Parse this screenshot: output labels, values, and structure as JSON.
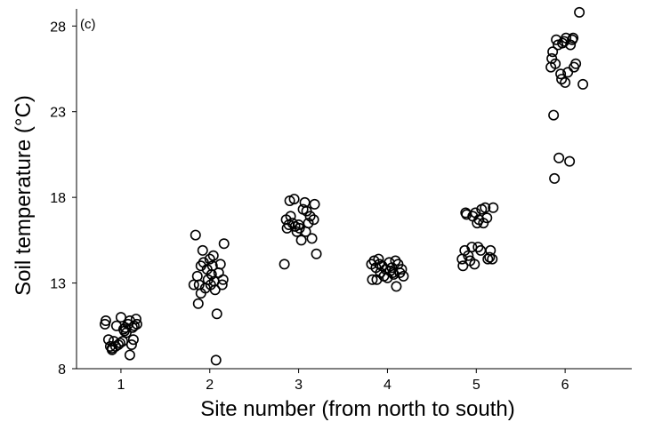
{
  "chart_data": {
    "type": "scatter",
    "panel_label": "(c)",
    "title": "",
    "xlabel": "Site number (from north to south)",
    "ylabel": "Soil temperature (°C)",
    "xlim": [
      0.5,
      6.75
    ],
    "ylim": [
      8,
      29
    ],
    "x_ticks": [
      1,
      2,
      3,
      4,
      5,
      6
    ],
    "y_ticks": [
      8,
      13,
      18,
      23,
      28
    ],
    "grid": false,
    "legend": "none",
    "series": [
      {
        "points": [
          [
            0.82,
            10.6
          ],
          [
            0.83,
            10.8
          ],
          [
            0.86,
            9.7
          ],
          [
            0.88,
            9.3
          ],
          [
            0.9,
            9.1
          ],
          [
            0.92,
            9.6
          ],
          [
            0.94,
            9.3
          ],
          [
            0.95,
            10.5
          ],
          [
            0.97,
            9.4
          ],
          [
            0.99,
            9.5
          ],
          [
            1.0,
            11.0
          ],
          [
            1.02,
            9.6
          ],
          [
            1.03,
            10.3
          ],
          [
            1.05,
            10.4
          ],
          [
            1.06,
            10.1
          ],
          [
            1.08,
            10.6
          ],
          [
            1.1,
            10.8
          ],
          [
            1.1,
            8.8
          ],
          [
            1.12,
            9.4
          ],
          [
            1.13,
            10.4
          ],
          [
            1.14,
            9.7
          ],
          [
            1.15,
            10.5
          ],
          [
            1.17,
            10.9
          ],
          [
            1.18,
            10.6
          ],
          [
            0.9,
            9.2
          ],
          [
            1.04,
            10.2
          ]
        ]
      },
      {
        "points": [
          [
            1.82,
            12.9
          ],
          [
            1.84,
            15.8
          ],
          [
            1.86,
            13.4
          ],
          [
            1.87,
            11.8
          ],
          [
            1.88,
            12.9
          ],
          [
            1.9,
            14.0
          ],
          [
            1.9,
            12.4
          ],
          [
            1.92,
            14.9
          ],
          [
            1.93,
            14.2
          ],
          [
            1.95,
            12.7
          ],
          [
            1.97,
            13.8
          ],
          [
            1.98,
            13.2
          ],
          [
            2.0,
            14.4
          ],
          [
            2.01,
            12.9
          ],
          [
            2.02,
            13.5
          ],
          [
            2.03,
            14.0
          ],
          [
            2.04,
            14.6
          ],
          [
            2.05,
            13.1
          ],
          [
            2.06,
            12.6
          ],
          [
            2.07,
            8.5
          ],
          [
            2.08,
            11.2
          ],
          [
            2.1,
            13.6
          ],
          [
            2.12,
            14.1
          ],
          [
            2.14,
            12.9
          ],
          [
            2.15,
            13.2
          ],
          [
            2.16,
            15.3
          ]
        ]
      },
      {
        "points": [
          [
            2.84,
            14.1
          ],
          [
            2.86,
            16.7
          ],
          [
            2.87,
            16.2
          ],
          [
            2.89,
            16.4
          ],
          [
            2.9,
            17.8
          ],
          [
            2.91,
            16.9
          ],
          [
            2.93,
            16.5
          ],
          [
            2.95,
            17.9
          ],
          [
            2.96,
            16.3
          ],
          [
            2.98,
            16.0
          ],
          [
            3.0,
            16.4
          ],
          [
            3.01,
            16.2
          ],
          [
            3.03,
            15.5
          ],
          [
            3.05,
            17.3
          ],
          [
            3.07,
            17.7
          ],
          [
            3.09,
            17.2
          ],
          [
            3.11,
            16.5
          ],
          [
            3.13,
            16.9
          ],
          [
            3.15,
            15.6
          ],
          [
            3.17,
            16.7
          ],
          [
            3.18,
            17.6
          ],
          [
            3.2,
            14.7
          ],
          [
            3.08,
            16.0
          ]
        ]
      },
      {
        "points": [
          [
            3.82,
            14.1
          ],
          [
            3.83,
            13.2
          ],
          [
            3.85,
            14.3
          ],
          [
            3.87,
            13.9
          ],
          [
            3.88,
            13.2
          ],
          [
            3.9,
            14.4
          ],
          [
            3.92,
            13.6
          ],
          [
            3.94,
            14.0
          ],
          [
            3.96,
            13.4
          ],
          [
            3.98,
            13.8
          ],
          [
            4.0,
            13.3
          ],
          [
            4.02,
            14.2
          ],
          [
            4.03,
            13.7
          ],
          [
            4.05,
            13.9
          ],
          [
            4.07,
            13.5
          ],
          [
            4.09,
            14.3
          ],
          [
            4.1,
            12.8
          ],
          [
            4.12,
            14.1
          ],
          [
            4.14,
            13.6
          ],
          [
            4.16,
            13.8
          ],
          [
            4.18,
            13.4
          ],
          [
            3.91,
            14.1
          ],
          [
            4.06,
            13.6
          ]
        ]
      },
      {
        "points": [
          [
            4.84,
            14.4
          ],
          [
            4.85,
            14.0
          ],
          [
            4.87,
            14.9
          ],
          [
            4.88,
            17.1
          ],
          [
            4.89,
            17.0
          ],
          [
            4.91,
            14.6
          ],
          [
            4.93,
            14.3
          ],
          [
            4.95,
            15.1
          ],
          [
            4.96,
            16.9
          ],
          [
            4.98,
            14.1
          ],
          [
            4.99,
            17.1
          ],
          [
            5.01,
            16.5
          ],
          [
            5.03,
            16.7
          ],
          [
            5.05,
            14.9
          ],
          [
            5.06,
            17.3
          ],
          [
            5.08,
            16.5
          ],
          [
            5.1,
            17.4
          ],
          [
            5.12,
            16.8
          ],
          [
            5.13,
            14.4
          ],
          [
            5.15,
            14.5
          ],
          [
            5.16,
            14.9
          ],
          [
            5.18,
            14.4
          ],
          [
            5.19,
            17.4
          ],
          [
            5.02,
            15.1
          ]
        ]
      },
      {
        "points": [
          [
            5.84,
            25.6
          ],
          [
            5.85,
            26.1
          ],
          [
            5.86,
            26.5
          ],
          [
            5.87,
            22.8
          ],
          [
            5.88,
            19.1
          ],
          [
            5.89,
            25.8
          ],
          [
            5.9,
            27.2
          ],
          [
            5.92,
            26.9
          ],
          [
            5.93,
            20.3
          ],
          [
            5.95,
            25.2
          ],
          [
            5.96,
            24.9
          ],
          [
            5.97,
            27.0
          ],
          [
            5.99,
            27.1
          ],
          [
            6.0,
            24.7
          ],
          [
            6.01,
            27.3
          ],
          [
            6.03,
            25.3
          ],
          [
            6.05,
            20.1
          ],
          [
            6.06,
            26.9
          ],
          [
            6.08,
            27.2
          ],
          [
            6.09,
            27.3
          ],
          [
            6.1,
            25.6
          ],
          [
            6.12,
            25.8
          ],
          [
            6.16,
            28.8
          ],
          [
            6.2,
            24.6
          ]
        ]
      }
    ]
  }
}
